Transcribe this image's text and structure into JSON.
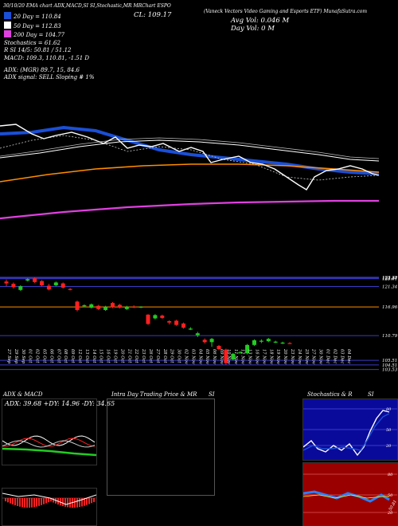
{
  "header": {
    "strip": "30/10/20  EMA chart  ADX,MACD,SI  SI,Stochastic,MR  MRChart  ESPO",
    "fund": "(Vaneck Vectors Video Gaming and Esports ETF) MunafaSutra.com",
    "close_label": "CL: 109.17",
    "avg_vol": "Avg Vol: 0.046  M",
    "day_vol": "Day Vol: 0   M"
  },
  "legend": [
    {
      "label": "20  Day = 110.84",
      "color": "#1a4fd6"
    },
    {
      "label": "50  Day = 112.83",
      "color": "#ffffff"
    },
    {
      "label": "200  Day = 104.77",
      "color": "#e040e0"
    }
  ],
  "indicators": {
    "stoch": "Stochastics = 61.62",
    "si": "R              SI 14/5: 50.81 / 51.12",
    "macd": "MACD: 109.3,  110.81,  -1.51 D",
    "adx": "ADX:                                       (MGR) 89.7,  15,  84.6",
    "adx_signal": "ADX  signal: SELL  Sloping  #  1%"
  },
  "price_levels": [
    {
      "label": "123.32",
      "value": 123.32
    },
    {
      "label": "123.17",
      "value": 123.17
    },
    {
      "label": "123.01",
      "value": 123.01
    },
    {
      "label": "121.34",
      "value": 121.34
    },
    {
      "label": "116.96",
      "value": 116.96
    },
    {
      "label": "110.79",
      "value": 110.79
    },
    {
      "label": "105.51",
      "value": 105.51
    },
    {
      "label": "104.51",
      "value": 104.51
    },
    {
      "label": "103.53",
      "value": 103.53
    }
  ],
  "colors": {
    "ma20": "#1a4fd6",
    "ma50": "#ffffff",
    "ma200": "#e040e0",
    "ema_orange": "#ff8c00",
    "up": "#22cc22",
    "down": "#ff2020",
    "level_line": "#3a3ac8",
    "level_orange": "#ff8c00"
  },
  "chart_data": {
    "type": "candlestick",
    "x": [
      "27 Sep",
      "29 Sep",
      "30 Sep",
      "01 Oct",
      "02 Oct",
      "05 Oct",
      "06 Oct",
      "07 Oct",
      "08 Oct",
      "09 Oct",
      "12 Oct",
      "13 Oct",
      "14 Oct",
      "15 Oct",
      "16 Oct",
      "19 Oct",
      "20 Oct",
      "21 Oct",
      "22 Oct",
      "23 Oct",
      "26 Oct",
      "27 Oct",
      "28 Oct",
      "29 Oct",
      "30 Oct",
      "02 Nov",
      "03 Nov",
      "04 Nov",
      "05 Nov",
      "06 Nov",
      "09 Nov",
      "10 Nov",
      "11 Nov",
      "12 Nov",
      "13 Nov",
      "16 Nov",
      "17 Nov",
      "18 Nov",
      "19 Nov",
      "20 Nov",
      "23 Nov",
      "24 Nov",
      "25 Nov",
      "27 Nov",
      "30 Nov",
      "01 Dec",
      "02 Dec",
      "03 Dec",
      "04 Dec"
    ],
    "candles": [
      {
        "x": "27 Sep",
        "o": 122.4,
        "c": 122.0,
        "h": 122.8,
        "l": 121.4
      },
      {
        "x": "29 Sep",
        "o": 121.9,
        "c": 121.2,
        "h": 122.2,
        "l": 120.9
      },
      {
        "x": "30 Sep",
        "o": 120.6,
        "c": 121.4,
        "h": 121.6,
        "l": 120.4
      },
      {
        "x": "01 Oct",
        "o": 122.6,
        "c": 122.9,
        "h": 123.1,
        "l": 122.4
      },
      {
        "x": "02 Oct",
        "o": 123.1,
        "c": 122.3,
        "h": 123.3,
        "l": 122.1
      },
      {
        "x": "05 Oct",
        "o": 122.5,
        "c": 121.6,
        "h": 122.7,
        "l": 121.4
      },
      {
        "x": "06 Oct",
        "o": 121.5,
        "c": 120.7,
        "h": 121.9,
        "l": 120.5
      },
      {
        "x": "07 Oct",
        "o": 121.6,
        "c": 122.2,
        "h": 122.4,
        "l": 121.4
      },
      {
        "x": "08 Oct",
        "o": 122.0,
        "c": 121.1,
        "h": 122.2,
        "l": 120.9
      },
      {
        "x": "09 Oct",
        "o": 120.8,
        "c": 120.7,
        "h": 121.0,
        "l": 120.5
      },
      {
        "x": "12 Oct",
        "o": 118.1,
        "c": 116.3,
        "h": 118.3,
        "l": 116.0
      },
      {
        "x": "13 Oct",
        "o": 117.1,
        "c": 117.3,
        "h": 117.5,
        "l": 116.9
      },
      {
        "x": "14 Oct",
        "o": 116.8,
        "c": 117.5,
        "h": 117.7,
        "l": 116.6
      },
      {
        "x": "15 Oct",
        "o": 117.2,
        "c": 116.5,
        "h": 117.4,
        "l": 116.3
      },
      {
        "x": "16 Oct",
        "o": 116.3,
        "c": 117.0,
        "h": 117.2,
        "l": 116.1
      },
      {
        "x": "19 Oct",
        "o": 117.8,
        "c": 116.9,
        "h": 118.0,
        "l": 116.7
      },
      {
        "x": "20 Oct",
        "o": 117.4,
        "c": 116.8,
        "h": 117.6,
        "l": 116.6
      },
      {
        "x": "21 Oct",
        "o": 116.5,
        "c": 117.0,
        "h": 117.2,
        "l": 116.3
      },
      {
        "x": "22 Oct",
        "o": 117.0,
        "c": 116.9,
        "h": 117.3,
        "l": 116.7
      },
      {
        "x": "23 Oct",
        "o": 116.9,
        "c": 117.0,
        "h": 117.1,
        "l": 116.7
      },
      {
        "x": "26 Oct",
        "o": 115.3,
        "c": 113.3,
        "h": 115.4,
        "l": 113.1
      },
      {
        "x": "27 Oct",
        "o": 114.5,
        "c": 115.2,
        "h": 115.4,
        "l": 114.3
      },
      {
        "x": "28 Oct",
        "o": 115.1,
        "c": 114.6,
        "h": 115.3,
        "l": 114.4
      },
      {
        "x": "29 Oct",
        "o": 113.9,
        "c": 113.6,
        "h": 114.1,
        "l": 113.2
      },
      {
        "x": "30 Oct",
        "o": 114.0,
        "c": 113.1,
        "h": 114.2,
        "l": 112.9
      },
      {
        "x": "02 Nov",
        "o": 113.4,
        "c": 112.5,
        "h": 113.6,
        "l": 112.3
      },
      {
        "x": "03 Nov",
        "o": 112.3,
        "c": 112.3,
        "h": 112.6,
        "l": 112.0
      },
      {
        "x": "04 Nov",
        "o": 110.9,
        "c": 111.3,
        "h": 111.6,
        "l": 110.5
      },
      {
        "x": "05 Nov",
        "o": 109.9,
        "c": 109.4,
        "h": 110.2,
        "l": 109.1
      },
      {
        "x": "06 Nov",
        "o": 109.4,
        "c": 110.1,
        "h": 110.3,
        "l": 108.4
      },
      {
        "x": "09 Nov",
        "o": 108.6,
        "c": 107.9,
        "h": 108.8,
        "l": 107.7
      },
      {
        "x": "10 Nov",
        "o": 107.8,
        "c": 104.9,
        "h": 108.0,
        "l": 104.6
      },
      {
        "x": "11 Nov",
        "o": 105.7,
        "c": 106.9,
        "h": 107.1,
        "l": 105.5
      },
      {
        "x": "12 Nov",
        "o": 107.2,
        "c": 107.2,
        "h": 107.5,
        "l": 107.0
      },
      {
        "x": "13 Nov",
        "o": 107.0,
        "c": 108.8,
        "h": 109.0,
        "l": 106.8
      },
      {
        "x": "16 Nov",
        "o": 108.8,
        "c": 109.8,
        "h": 110.0,
        "l": 108.6
      },
      {
        "x": "17 Nov",
        "o": 109.5,
        "c": 109.7,
        "h": 110.0,
        "l": 109.2
      },
      {
        "x": "18 Nov",
        "o": 109.6,
        "c": 110.1,
        "h": 110.3,
        "l": 109.4
      },
      {
        "x": "19 Nov",
        "o": 109.4,
        "c": 109.5,
        "h": 109.7,
        "l": 109.2
      },
      {
        "x": "20 Nov",
        "o": 109.2,
        "c": 109.3,
        "h": 109.5,
        "l": 109.0
      },
      {
        "x": "23 Nov",
        "o": 109.2,
        "c": 109.1,
        "h": 109.4,
        "l": 109.0
      }
    ]
  },
  "x_labels": [
    "27 Sep",
    "29 Sep",
    "30 Sep",
    "01 Oct",
    "02 Oct",
    "05 Oct",
    "06 Oct",
    "07 Oct",
    "08 Oct",
    "09 Oct",
    "12 Oct",
    "13 Oct",
    "14 Oct",
    "15 Oct",
    "16 Oct",
    "19 Oct",
    "20 Oct",
    "21 Oct",
    "22 Oct",
    "23 Oct",
    "26 Oct",
    "27 Oct",
    "28 Oct",
    "29 Oct",
    "30 Oct",
    "02 Nov",
    "03 Nov",
    "04 Nov",
    "05 Nov",
    "06 Nov",
    "09 Nov",
    "10 Nov",
    "11 Nov",
    "12 Nov",
    "13 Nov",
    "16 Nov",
    "17 Nov",
    "18 Nov",
    "19 Nov",
    "20 Nov",
    "23 Nov",
    "24 Nov",
    "25 Nov",
    "27 Nov",
    "30 Nov",
    "01 Dec",
    "02 Dec",
    "03 Dec",
    "04 Dec"
  ],
  "panels": {
    "adx": {
      "title": "ADX  & MACD",
      "readout": "ADX: 39.68  +DY: 14.96  -DY: 34.65"
    },
    "intraday": {
      "title": "Intra Day Trading Price  & MR",
      "si": "SI"
    },
    "stoch": {
      "title": "Stochastics & R",
      "si": "SI",
      "top_levels": [
        "80",
        "50",
        "20"
      ],
      "bottom_levels": [
        "80",
        "50",
        "20"
      ],
      "vertical_value": "50.81"
    }
  }
}
